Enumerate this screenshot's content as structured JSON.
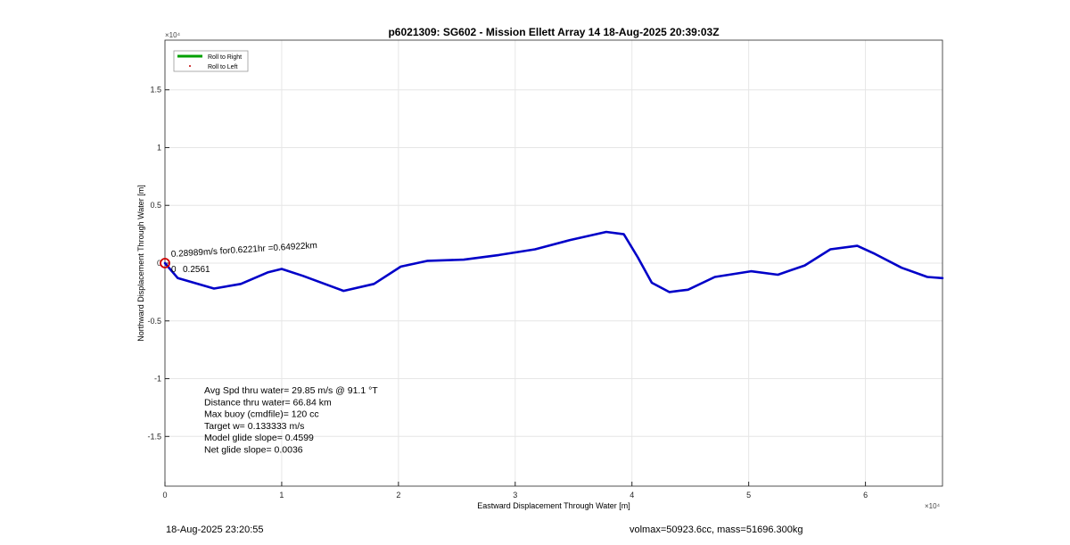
{
  "chart_data": {
    "type": "line",
    "title": "p6021309: SG602 - Mission Ellett Array 14 18-Aug-2025 20:39:03Z",
    "xlabel": "Eastward Displacement Through Water [m]",
    "ylabel": "Northward Displacement Through Water [m]",
    "x_multiplier": "×10⁴",
    "y_multiplier": "×10⁴",
    "xlim": [
      0,
      6.66
    ],
    "ylim": [
      -1.93,
      1.93
    ],
    "xticks": [
      "0",
      "1",
      "2",
      "3",
      "4",
      "5",
      "6"
    ],
    "xtick_values": [
      0,
      1,
      2,
      3,
      4,
      5,
      6
    ],
    "yticks": [
      "1.5",
      "1",
      "0.5",
      "0",
      "-0.5",
      "-1",
      "-1.5"
    ],
    "ytick_values": [
      1.5,
      1,
      0.5,
      0,
      -0.5,
      -1,
      -1.5
    ],
    "grid": true,
    "legend": {
      "placement": "top-left",
      "entries": [
        {
          "label": "Roll to Right",
          "color": "#00a000",
          "style": "line"
        },
        {
          "label": "Roll to Left",
          "color": "#c00000",
          "style": "dot"
        }
      ]
    },
    "series": [
      {
        "name": "track",
        "color": "#0000c8",
        "x": [
          0,
          0.11,
          0.42,
          0.65,
          0.88,
          1.0,
          1.18,
          1.53,
          1.79,
          2.02,
          2.25,
          2.56,
          2.86,
          3.17,
          3.47,
          3.78,
          3.93,
          4.05,
          4.17,
          4.32,
          4.48,
          4.71,
          5.02,
          5.25,
          5.48,
          5.7,
          5.93,
          6.08,
          6.31,
          6.53,
          6.66
        ],
        "y": [
          0,
          -0.13,
          -0.22,
          -0.18,
          -0.08,
          -0.05,
          -0.11,
          -0.24,
          -0.18,
          -0.03,
          0.02,
          0.03,
          0.07,
          0.12,
          0.2,
          0.27,
          0.25,
          0.05,
          -0.17,
          -0.25,
          -0.23,
          -0.12,
          -0.07,
          -0.1,
          -0.02,
          0.12,
          0.15,
          0.08,
          -0.04,
          -0.12,
          -0.13
        ]
      }
    ],
    "start_marker": {
      "x": 0,
      "y": 0,
      "color": "#d00000"
    },
    "annotations": {
      "segment_label": "0.28989m/s for0.6221hr =0.64922km",
      "overlap_label": "0.2561",
      "start_label": "0",
      "stats": [
        "Avg Spd thru water= 29.85 m/s @  91.1 °T",
        "Distance thru water= 66.84 km",
        "Max buoy (cmdfile)= 120 cc",
        "Target w= 0.133333 m/s",
        "Model glide slope= 0.4599",
        "Net glide slope= 0.0036"
      ]
    }
  },
  "footer": {
    "timestamp": "18-Aug-2025 23:20:55",
    "volume_mass": "volmax=50923.6cc, mass=51696.300kg"
  }
}
